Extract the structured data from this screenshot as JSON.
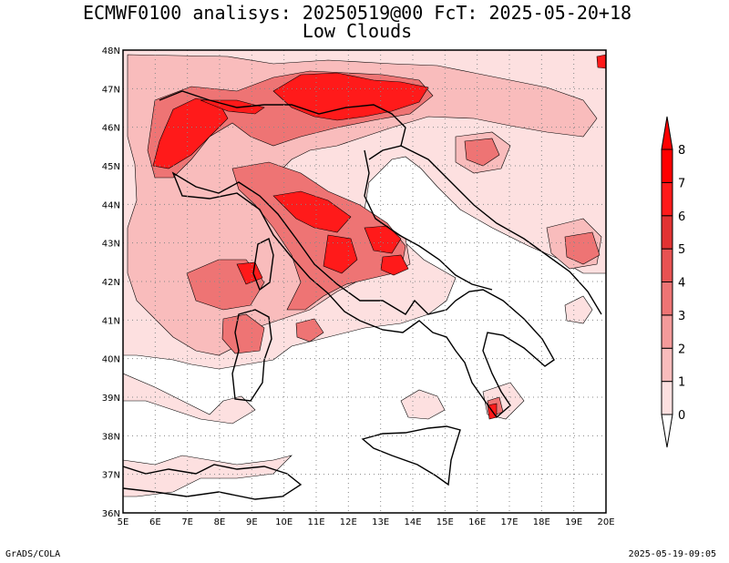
{
  "header": {
    "title_line1": "ECMWF0100 analisys: 20250519@00 FcT: 2025-05-20+18",
    "title_line2": "Low Clouds"
  },
  "footer": {
    "credit": "GrADS/COLA",
    "timestamp": "2025-05-19-09:05"
  },
  "map": {
    "lon_ticks": [
      "5E",
      "6E",
      "7E",
      "8E",
      "9E",
      "10E",
      "11E",
      "12E",
      "13E",
      "14E",
      "15E",
      "16E",
      "17E",
      "18E",
      "19E",
      "20E"
    ],
    "lat_ticks": [
      "36N",
      "37N",
      "38N",
      "39N",
      "40N",
      "41N",
      "42N",
      "43N",
      "44N",
      "45N",
      "46N",
      "47N",
      "48N"
    ],
    "lon_range": [
      5,
      20
    ],
    "lat_range": [
      36,
      48
    ],
    "gridlines": "dotted"
  },
  "colorbar": {
    "levels": [
      "0",
      "1",
      "2",
      "3",
      "4",
      "5",
      "6",
      "7",
      "8"
    ],
    "colors": [
      "#ffffff",
      "#fde0e0",
      "#f9bcbc",
      "#f49a9a",
      "#ee7474",
      "#e85252",
      "#e23232",
      "#ff1a1a",
      "#ff0000"
    ]
  }
}
